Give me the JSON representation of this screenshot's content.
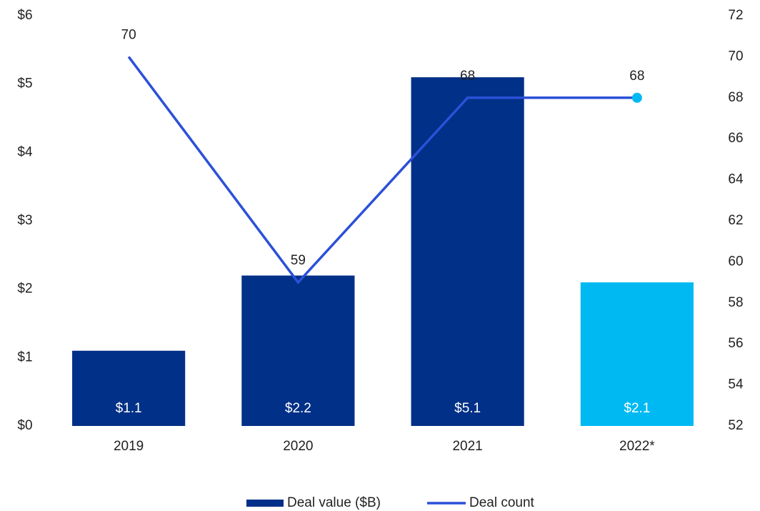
{
  "chart_data": {
    "type": "bar_line",
    "categories": [
      "2019",
      "2020",
      "2021",
      "2022*"
    ],
    "series": [
      {
        "name": "Deal value ($B)",
        "type": "bar",
        "color": "#003087",
        "colors": [
          "#003087",
          "#003087",
          "#003087",
          "#00b9f2"
        ],
        "values": [
          1.1,
          2.2,
          5.1,
          2.1
        ],
        "value_labels": [
          "$1.1",
          "$2.2",
          "$5.1",
          "$2.1"
        ]
      },
      {
        "name": "Deal count",
        "type": "line",
        "axis": "y2",
        "color": "#2b50d8",
        "marker_colors": [
          null,
          null,
          null,
          "#00b9f2"
        ],
        "values": [
          70,
          59,
          68,
          68
        ]
      }
    ],
    "ylim": [
      0,
      6
    ],
    "yticks": [
      {
        "value": 0,
        "label": "$0"
      },
      {
        "value": 1,
        "label": "$1"
      },
      {
        "value": 2,
        "label": "$2"
      },
      {
        "value": 3,
        "label": "$3"
      },
      {
        "value": 4,
        "label": "$4"
      },
      {
        "value": 5,
        "label": "$5"
      },
      {
        "value": 6,
        "label": "$6"
      }
    ],
    "y2lim": [
      52,
      72
    ],
    "y2ticks": [
      52,
      54,
      56,
      58,
      60,
      62,
      64,
      66,
      68,
      70,
      72
    ],
    "grid": false,
    "legend": "bottom"
  }
}
